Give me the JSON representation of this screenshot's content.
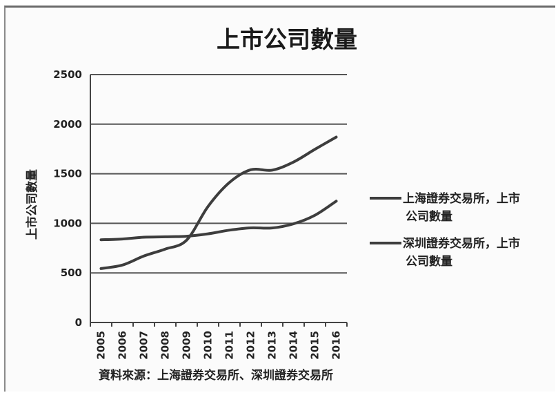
{
  "chart_data": {
    "type": "line",
    "title": "上市公司數量",
    "ylabel": "上市公司數量",
    "xlabel": "",
    "source": "資料來源：上海證券交易所、深圳證券交易所",
    "ylim": [
      0,
      2500
    ],
    "yticks": [
      0,
      500,
      1000,
      1500,
      2000,
      2500
    ],
    "categories": [
      "2005",
      "2006",
      "2007",
      "2008",
      "2009",
      "2010",
      "2011",
      "2012",
      "2013",
      "2014",
      "2015",
      "2016"
    ],
    "grid": true,
    "legend_position": "right",
    "series": [
      {
        "name": "上海證券交易所，上市公司數量",
        "values": [
          834,
          842,
          860,
          864,
          870,
          894,
          931,
          954,
          953,
          995,
          1081,
          1224
        ]
      },
      {
        "name": "深圳證券交易所，上市公司數量",
        "values": [
          544,
          579,
          670,
          740,
          830,
          1169,
          1411,
          1540,
          1536,
          1618,
          1746,
          1870
        ]
      }
    ],
    "colors": {
      "line": "#3d3d3d",
      "grid": "#555555",
      "axis": "#444444"
    }
  }
}
